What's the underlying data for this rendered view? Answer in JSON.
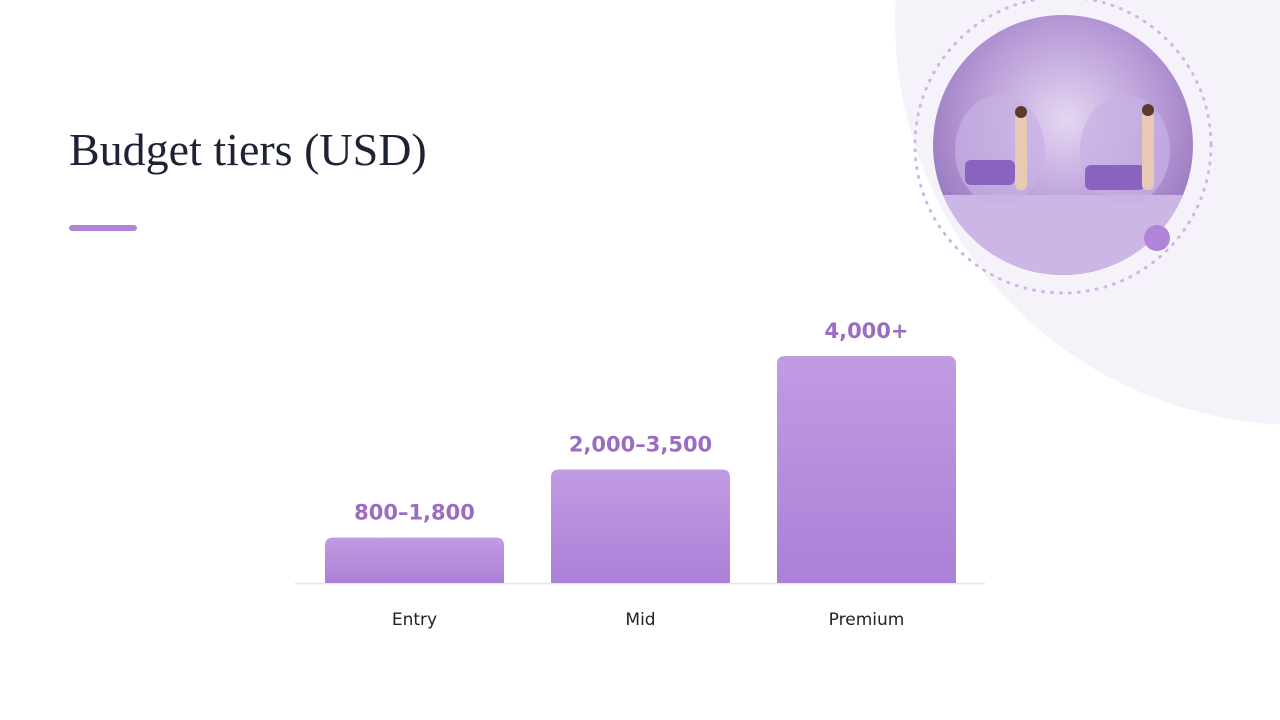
{
  "chart_data": {
    "type": "bar",
    "title": "Budget tiers (USD)",
    "categories": [
      "Entry",
      "Mid",
      "Premium"
    ],
    "values": [
      800,
      2000,
      4000
    ],
    "value_labels": [
      "800–1,800",
      "2,000–3,500",
      "4,000+"
    ],
    "color": "#b48ade",
    "ylim": [
      0,
      4000
    ]
  }
}
